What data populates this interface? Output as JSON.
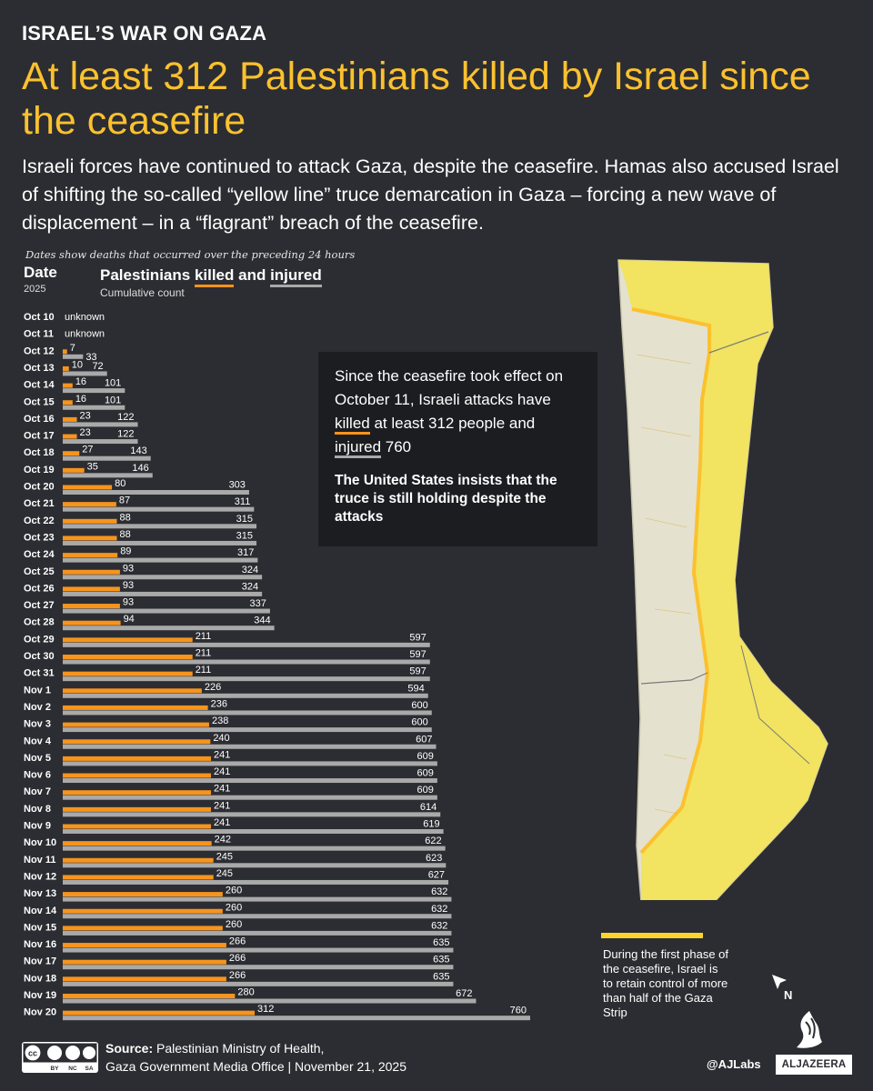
{
  "header": {
    "kicker": "ISRAEL’S WAR ON GAZA",
    "headline": "At least 312 Palestinians killed by Israel since the ceasefire",
    "lede": "Israeli forces have continued to attack Gaza, despite the ceasefire. Hamas also accused Israel of shifting the so-called “yellow line” truce demarcation in Gaza – forcing a new wave of displacement – in a “flagrant” breach of the ceasefire."
  },
  "chart_header": {
    "note": "Dates show deaths that occurred over the preceding 24 hours",
    "date_label": "Date",
    "year": "2025",
    "legend_prefix": "Palestinians ",
    "legend_killed": "killed",
    "legend_and": " and ",
    "legend_injured": "injured",
    "legend_sub": "Cumulative count"
  },
  "chart_data": {
    "type": "bar",
    "orientation": "horizontal",
    "categories": [
      "Oct 10",
      "Oct 11",
      "Oct 12",
      "Oct 13",
      "Oct 14",
      "Oct 15",
      "Oct 16",
      "Oct 17",
      "Oct 18",
      "Oct 19",
      "Oct 20",
      "Oct 21",
      "Oct 22",
      "Oct 23",
      "Oct 24",
      "Oct 25",
      "Oct 26",
      "Oct 27",
      "Oct 28",
      "Oct 29",
      "Oct 30",
      "Oct 31",
      "Nov 1",
      "Nov 2",
      "Nov 3",
      "Nov 4",
      "Nov 5",
      "Nov 6",
      "Nov 7",
      "Nov 8",
      "Nov 9",
      "Nov 10",
      "Nov 11",
      "Nov 12",
      "Nov 13",
      "Nov 14",
      "Nov 15",
      "Nov 16",
      "Nov 17",
      "Nov 18",
      "Nov 19",
      "Nov 20"
    ],
    "series": [
      {
        "name": "killed",
        "color": "#f7941d",
        "values": [
          null,
          null,
          7,
          10,
          16,
          16,
          23,
          23,
          27,
          35,
          80,
          87,
          88,
          88,
          89,
          93,
          93,
          93,
          94,
          211,
          211,
          211,
          226,
          236,
          238,
          240,
          241,
          241,
          241,
          241,
          241,
          242,
          245,
          245,
          260,
          260,
          260,
          266,
          266,
          266,
          280,
          312
        ]
      },
      {
        "name": "injured",
        "color": "#a9a9a9",
        "values": [
          null,
          null,
          33,
          72,
          101,
          101,
          122,
          122,
          143,
          146,
          303,
          311,
          315,
          315,
          317,
          324,
          324,
          337,
          344,
          597,
          597,
          597,
          594,
          600,
          600,
          607,
          609,
          609,
          609,
          614,
          619,
          622,
          623,
          627,
          632,
          632,
          632,
          635,
          635,
          635,
          672,
          760
        ]
      }
    ],
    "missing_label": "unknown",
    "xlim": [
      0,
      760
    ]
  },
  "callout": {
    "line1": "Since the ceasefire took effect on October 11, Israeli attacks have ",
    "killed": "killed",
    "line2": " at least 312 people and ",
    "injured": "injured",
    "line3": " 760",
    "bold": "The United States insists that the truce is still holding despite the attacks"
  },
  "map": {
    "legend_text": "During the first phase of the ceasefire, Israel is to retain control of more than half of the Gaza Strip",
    "north_label": "N",
    "colors": {
      "zone": "#f2e35a",
      "line": "#fbc12e",
      "land": "#e4e1cf"
    }
  },
  "footer": {
    "license_labels": [
      "BY",
      "NC",
      "SA"
    ],
    "source_label": "Source:",
    "source_line1": "  Palestinian Ministry of Health,",
    "source_line2": "Gaza Government Media Office  |  November 21, 2025",
    "handle": "@AJLabs",
    "brand": "ALJAZEERA"
  }
}
